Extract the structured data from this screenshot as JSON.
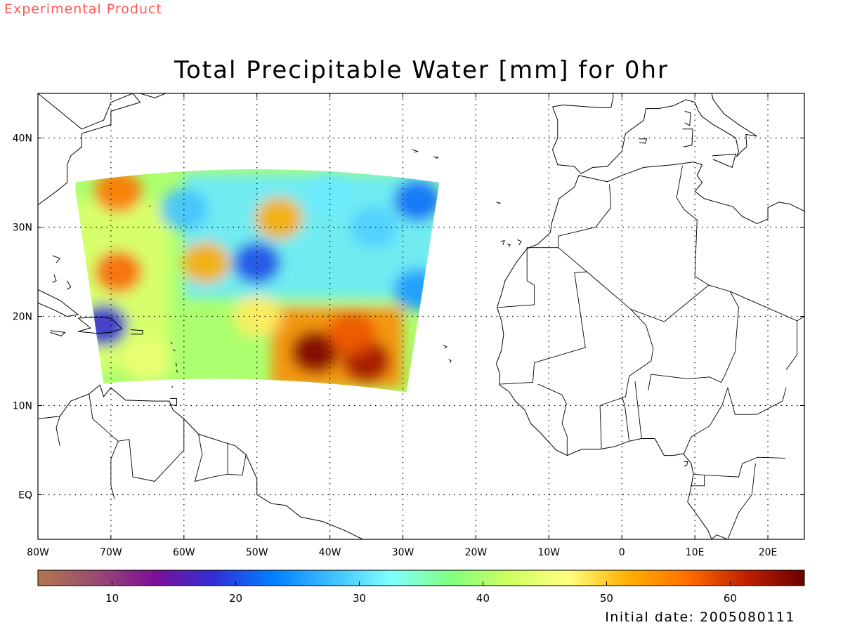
{
  "header": {
    "experimental_label": "Experimental Product",
    "title": "Total Precipitable Water [mm] for 0hr"
  },
  "footer": {
    "initial_date": "Initial date: 2005080111"
  },
  "map": {
    "lon_range": [
      -80,
      25
    ],
    "lat_range": [
      -5,
      45
    ],
    "grid": "dotted",
    "lon_ticks": [
      {
        "value": -80,
        "label": "80W"
      },
      {
        "value": -70,
        "label": "70W"
      },
      {
        "value": -60,
        "label": "60W"
      },
      {
        "value": -50,
        "label": "50W"
      },
      {
        "value": -40,
        "label": "40W"
      },
      {
        "value": -30,
        "label": "30W"
      },
      {
        "value": -20,
        "label": "20W"
      },
      {
        "value": -10,
        "label": "10W"
      },
      {
        "value": 0,
        "label": "0"
      },
      {
        "value": 10,
        "label": "10E"
      },
      {
        "value": 20,
        "label": "20E"
      }
    ],
    "lat_ticks": [
      {
        "value": 40,
        "label": "40N"
      },
      {
        "value": 30,
        "label": "30N"
      },
      {
        "value": 20,
        "label": "20N"
      },
      {
        "value": 10,
        "label": "10N"
      },
      {
        "value": 0,
        "label": "EQ"
      }
    ],
    "data_domain": {
      "corners": [
        [
          -75,
          35
        ],
        [
          -25,
          35
        ],
        [
          -29.5,
          11.5
        ],
        [
          -71,
          12.5
        ]
      ]
    },
    "tpw_field_blobs": [
      {
        "lon": -42,
        "lat": 16,
        "value": 65
      },
      {
        "lon": -35,
        "lat": 15,
        "value": 63
      },
      {
        "lon": -37,
        "lat": 18,
        "value": 58
      },
      {
        "lon": -69,
        "lat": 34,
        "value": 56
      },
      {
        "lon": -69,
        "lat": 25,
        "value": 57
      },
      {
        "lon": -57,
        "lat": 26,
        "value": 52
      },
      {
        "lon": -47,
        "lat": 31,
        "value": 52
      },
      {
        "lon": -50,
        "lat": 20,
        "value": 48
      },
      {
        "lon": -65,
        "lat": 15,
        "value": 45
      },
      {
        "lon": -50,
        "lat": 26,
        "value": 20
      },
      {
        "lon": -34,
        "lat": 30,
        "value": 29
      },
      {
        "lon": -28,
        "lat": 33,
        "value": 22
      },
      {
        "lon": -28,
        "lat": 23,
        "value": 25
      },
      {
        "lon": -60,
        "lat": 32,
        "value": 28
      },
      {
        "lon": -40,
        "lat": 34,
        "value": 31
      },
      {
        "lon": -71,
        "lat": 19,
        "value": 18
      }
    ]
  },
  "colorbar": {
    "range": [
      4,
      66
    ],
    "ticks": [
      {
        "value": 10,
        "label": "10"
      },
      {
        "value": 20,
        "label": "20"
      },
      {
        "value": 30,
        "label": "30"
      },
      {
        "value": 40,
        "label": "40"
      },
      {
        "value": 50,
        "label": "50"
      },
      {
        "value": 60,
        "label": "60"
      }
    ],
    "color_stops": [
      "#b07850",
      "#9a4a72",
      "#7a0f96",
      "#3030d8",
      "#0080ff",
      "#40c0ff",
      "#80ffff",
      "#80ff80",
      "#d0ff60",
      "#ffff80",
      "#ffb000",
      "#ff7000",
      "#c02000",
      "#6a0000"
    ]
  }
}
